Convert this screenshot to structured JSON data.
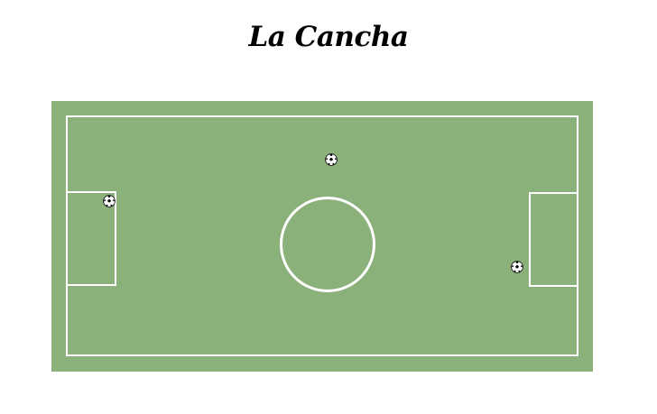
{
  "page": {
    "title": "La Cancha"
  },
  "field": {
    "background_color": "#8bb17b",
    "line_color": "#ffffff",
    "balls": [
      {
        "name": "ball-top",
        "icon": "soccer-ball-icon"
      },
      {
        "name": "ball-left",
        "icon": "soccer-ball-icon"
      },
      {
        "name": "ball-right",
        "icon": "soccer-ball-icon"
      }
    ]
  }
}
